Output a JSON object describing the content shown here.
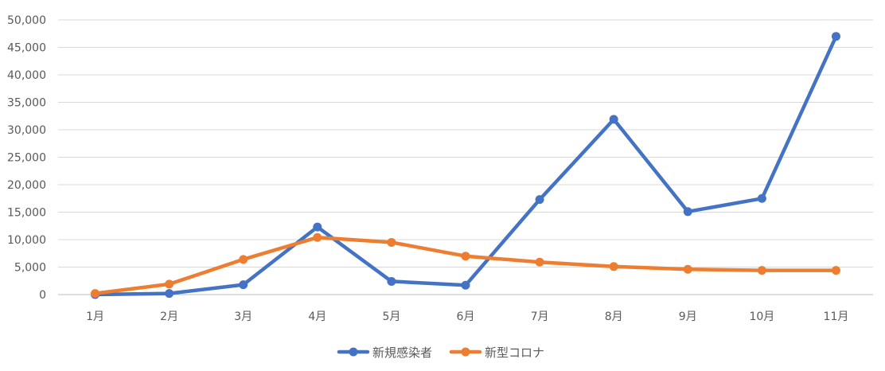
{
  "chart_data": {
    "type": "line",
    "categories": [
      "1月",
      "2月",
      "3月",
      "4月",
      "5月",
      "6月",
      "7月",
      "8月",
      "9月",
      "10月",
      "11月"
    ],
    "series": [
      {
        "name": "新規感染者",
        "color": "#4472C4",
        "values": [
          0,
          200,
          1800,
          12300,
          2400,
          1700,
          17300,
          31900,
          15100,
          17500,
          47000
        ]
      },
      {
        "name": "新型コロナ",
        "color": "#ED7D31",
        "values": [
          200,
          1900,
          6400,
          10400,
          9500,
          7000,
          5900,
          5100,
          4600,
          4400,
          4400
        ]
      }
    ],
    "y_ticks": [
      "0",
      "5,000",
      "10,000",
      "15,000",
      "20,000",
      "25,000",
      "30,000",
      "35,000",
      "40,000",
      "45,000",
      "50,000"
    ],
    "ylim": [
      0,
      50000
    ],
    "title": "",
    "xlabel": "",
    "ylabel": "",
    "grid": true,
    "gridline_color": "#D9D9D9",
    "legend_position": "bottom-center"
  }
}
